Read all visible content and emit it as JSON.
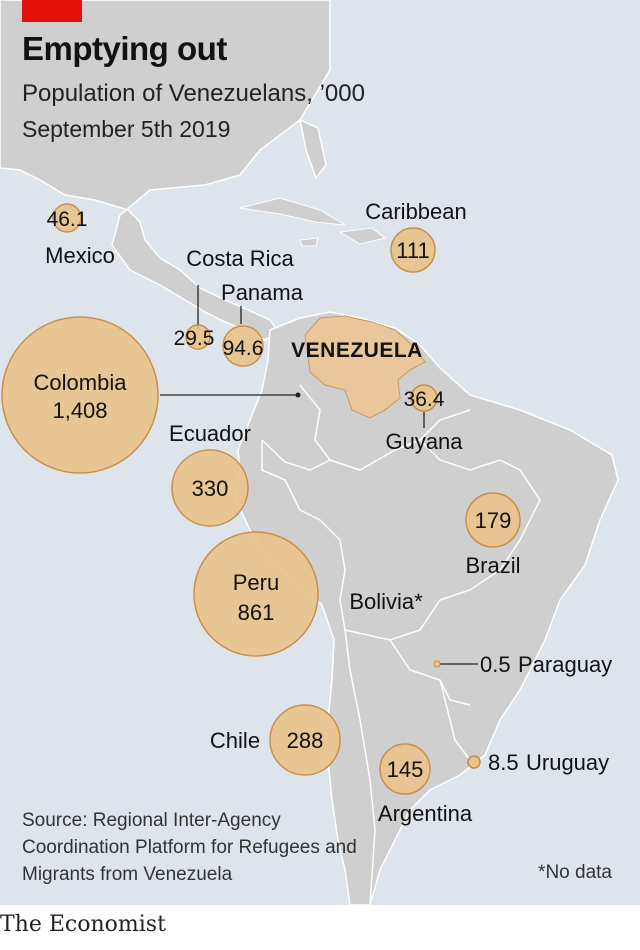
{
  "header": {
    "title": "Emptying out",
    "subtitle": "Population of Venezuelans, ’000",
    "date": "September 5th 2019"
  },
  "map": {
    "country_label": "VENEZUELA",
    "unit": "’000",
    "locations": [
      {
        "name": "Colombia",
        "value": "1,408",
        "amount": 1408
      },
      {
        "name": "Peru",
        "value": "861",
        "amount": 861
      },
      {
        "name": "Ecuador",
        "value": "330",
        "amount": 330
      },
      {
        "name": "Chile",
        "value": "288",
        "amount": 288
      },
      {
        "name": "Brazil",
        "value": "179",
        "amount": 179
      },
      {
        "name": "Argentina",
        "value": "145",
        "amount": 145
      },
      {
        "name": "Caribbean",
        "value": "111",
        "amount": 111
      },
      {
        "name": "Panama",
        "value": "94.6",
        "amount": 94.6
      },
      {
        "name": "Mexico",
        "value": "46.1",
        "amount": 46.1
      },
      {
        "name": "Guyana",
        "value": "36.4",
        "amount": 36.4
      },
      {
        "name": "Costa Rica",
        "value": "29.5",
        "amount": 29.5
      },
      {
        "name": "Uruguay",
        "value": "8.5",
        "amount": 8.5
      },
      {
        "name": "Paraguay",
        "value": "0.5",
        "amount": 0.5
      },
      {
        "name": "Bolivia*",
        "value": "",
        "amount": null
      }
    ]
  },
  "footer": {
    "source": "Source: Regional Inter-Agency Coordination Platform for Refugees and Migrants from Venezuela",
    "note": "*No data",
    "brand": "The Economist"
  },
  "colors": {
    "sea": "#dde4eb",
    "land": "#cfcfcf",
    "border": "#ffffff",
    "venezuela": "#eac79a",
    "bubble_fill": "#eac48c",
    "bubble_stroke": "#c8893e",
    "brand_red": "#e3120b",
    "text": "#121212"
  }
}
